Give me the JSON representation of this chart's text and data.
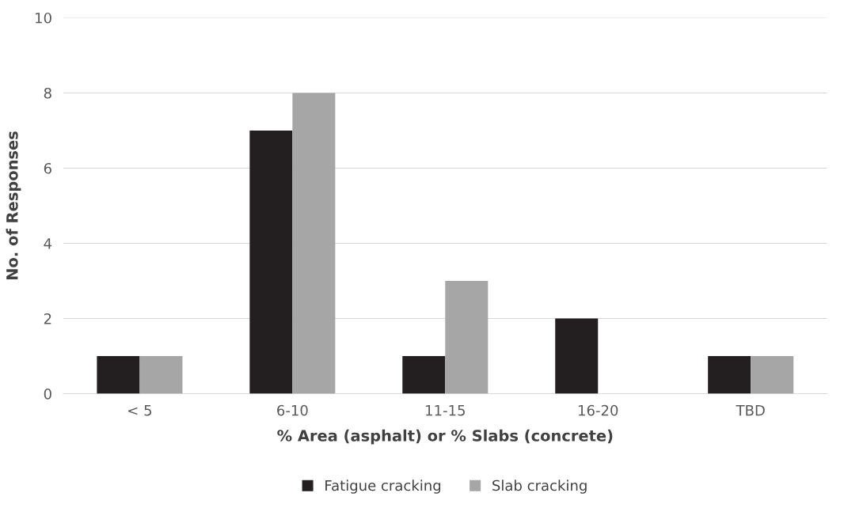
{
  "chart_data": {
    "type": "bar",
    "xlabel": "% Area (asphalt) or % Slabs (concrete)",
    "ylabel": "No. of Responses",
    "categories": [
      "< 5",
      "6-10",
      "11-15",
      "16-20",
      "TBD"
    ],
    "series": [
      {
        "name": "Fatigue cracking",
        "color": "#231f20",
        "values": [
          1,
          7,
          1,
          2,
          1
        ]
      },
      {
        "name": "Slab cracking",
        "color": "#a6a6a6",
        "values": [
          1,
          8,
          3,
          0,
          1
        ]
      }
    ],
    "ylim": [
      0,
      10
    ],
    "yticks": [
      0,
      2,
      4,
      6,
      8,
      10
    ],
    "grid": "y",
    "legend": "bottom"
  }
}
